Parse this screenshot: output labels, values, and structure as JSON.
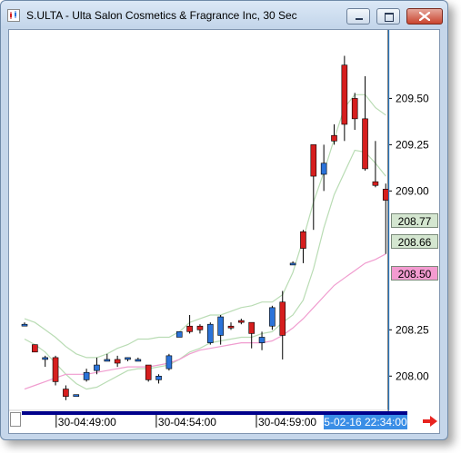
{
  "window": {
    "title": "S.ULTA - Ulta Salon Cosmetics & Fragrance Inc, 30 Sec",
    "minimize_icon": "minimize-icon",
    "maximize_icon": "maximize-icon",
    "close_icon": "close-icon"
  },
  "price_tags": {
    "last": {
      "value": "208.77",
      "color": "#d4e6d0"
    },
    "mid": {
      "value": "208.66",
      "color": "#d4e6d0"
    },
    "low": {
      "value": "208.50",
      "color": "#f39bd0"
    }
  },
  "time_axis": {
    "current_label": "5-02-16 22:34:00"
  },
  "colors": {
    "up_candle": "#2b73d9",
    "down_candle": "#d61e1e",
    "band": "#b9dcb4",
    "ma": "#f09ccf",
    "cursor": "#2e86d9",
    "scrollbar": "#00008b"
  },
  "chart_data": {
    "type": "candlestick",
    "interval": "30 Sec",
    "y_ticks": [
      "209.50",
      "209.25",
      "209.00",
      "208.25",
      "208.00"
    ],
    "x_ticks": [
      "30-04:49:00",
      "30-04:54:00",
      "30-04:59:00"
    ],
    "ylim": [
      207.82,
      209.86
    ],
    "candles": [
      {
        "o": 208.28,
        "h": 208.29,
        "l": 208.27,
        "c": 208.28
      },
      {
        "o": 208.17,
        "h": 208.17,
        "l": 208.13,
        "c": 208.13
      },
      {
        "o": 208.1,
        "h": 208.11,
        "l": 208.05,
        "c": 208.1
      },
      {
        "o": 208.1,
        "h": 208.11,
        "l": 207.95,
        "c": 207.97
      },
      {
        "o": 207.93,
        "h": 207.95,
        "l": 207.87,
        "c": 207.89
      },
      {
        "o": 207.9,
        "h": 207.9,
        "l": 207.89,
        "c": 207.9
      },
      {
        "o": 207.98,
        "h": 208.04,
        "l": 207.97,
        "c": 208.02
      },
      {
        "o": 208.03,
        "h": 208.1,
        "l": 208.01,
        "c": 208.06
      },
      {
        "o": 208.09,
        "h": 208.12,
        "l": 208.08,
        "c": 208.09
      },
      {
        "o": 208.09,
        "h": 208.11,
        "l": 208.05,
        "c": 208.07
      },
      {
        "o": 208.09,
        "h": 208.1,
        "l": 208.08,
        "c": 208.1
      },
      {
        "o": 208.09,
        "h": 208.1,
        "l": 208.08,
        "c": 208.09
      },
      {
        "o": 208.06,
        "h": 208.06,
        "l": 207.97,
        "c": 207.98
      },
      {
        "o": 207.98,
        "h": 208.01,
        "l": 207.96,
        "c": 208.0
      },
      {
        "o": 208.04,
        "h": 208.12,
        "l": 208.03,
        "c": 208.11
      },
      {
        "o": 208.21,
        "h": 208.24,
        "l": 208.21,
        "c": 208.24
      },
      {
        "o": 208.27,
        "h": 208.33,
        "l": 208.23,
        "c": 208.24
      },
      {
        "o": 208.27,
        "h": 208.28,
        "l": 208.23,
        "c": 208.25
      },
      {
        "o": 208.18,
        "h": 208.29,
        "l": 208.17,
        "c": 208.28
      },
      {
        "o": 208.22,
        "h": 208.33,
        "l": 208.17,
        "c": 208.32
      },
      {
        "o": 208.27,
        "h": 208.29,
        "l": 208.25,
        "c": 208.26
      },
      {
        "o": 208.3,
        "h": 208.31,
        "l": 208.28,
        "c": 208.29
      },
      {
        "o": 208.29,
        "h": 208.29,
        "l": 208.15,
        "c": 208.23
      },
      {
        "o": 208.18,
        "h": 208.24,
        "l": 208.14,
        "c": 208.21
      },
      {
        "o": 208.27,
        "h": 208.38,
        "l": 208.25,
        "c": 208.37
      },
      {
        "o": 208.4,
        "h": 208.46,
        "l": 208.09,
        "c": 208.22
      },
      {
        "o": 208.61,
        "h": 208.62,
        "l": 208.6,
        "c": 208.61
      },
      {
        "o": 208.78,
        "h": 208.79,
        "l": 208.61,
        "c": 208.69
      },
      {
        "o": 209.25,
        "h": 209.25,
        "l": 208.79,
        "c": 209.08
      },
      {
        "o": 209.09,
        "h": 209.25,
        "l": 209.0,
        "c": 209.15
      },
      {
        "o": 209.3,
        "h": 209.36,
        "l": 209.25,
        "c": 209.27
      },
      {
        "o": 209.68,
        "h": 209.73,
        "l": 209.27,
        "c": 209.36
      },
      {
        "o": 209.5,
        "h": 209.53,
        "l": 209.33,
        "c": 209.39
      },
      {
        "o": 209.39,
        "h": 209.62,
        "l": 209.11,
        "c": 209.12
      },
      {
        "o": 209.05,
        "h": 209.27,
        "l": 209.02,
        "c": 209.03
      },
      {
        "o": 209.01,
        "h": 209.04,
        "l": 208.66,
        "c": 208.95
      }
    ],
    "upper_band": [
      208.31,
      208.29,
      208.25,
      208.21,
      208.16,
      208.12,
      208.1,
      208.1,
      208.12,
      208.15,
      208.17,
      208.2,
      208.2,
      208.21,
      208.21,
      208.24,
      208.29,
      208.31,
      208.33,
      208.33,
      208.35,
      208.37,
      208.38,
      208.4,
      208.4,
      208.44,
      208.56,
      208.74,
      208.94,
      209.1,
      209.28,
      209.45,
      209.52,
      209.52,
      209.45,
      209.41
    ],
    "lower_band": [
      208.2,
      208.17,
      208.13,
      208.07,
      208.01,
      207.96,
      207.93,
      207.94,
      207.97,
      208.0,
      208.03,
      208.04,
      208.04,
      208.05,
      208.06,
      208.09,
      208.13,
      208.15,
      208.18,
      208.19,
      208.2,
      208.21,
      208.21,
      208.23,
      208.24,
      208.29,
      208.33,
      208.41,
      208.58,
      208.8,
      208.98,
      209.1,
      209.22,
      209.21,
      209.15,
      209.08
    ],
    "ma": [
      207.93,
      207.95,
      207.97,
      207.99,
      208.01,
      208.01,
      208.01,
      208.02,
      208.03,
      208.04,
      208.05,
      208.05,
      208.05,
      208.06,
      208.07,
      208.09,
      208.12,
      208.14,
      208.15,
      208.16,
      208.17,
      208.18,
      208.18,
      208.18,
      208.19,
      208.22,
      208.26,
      208.31,
      208.37,
      208.43,
      208.49,
      208.53,
      208.57,
      208.61,
      208.63,
      208.66
    ],
    "cursor_index": 35.3
  }
}
